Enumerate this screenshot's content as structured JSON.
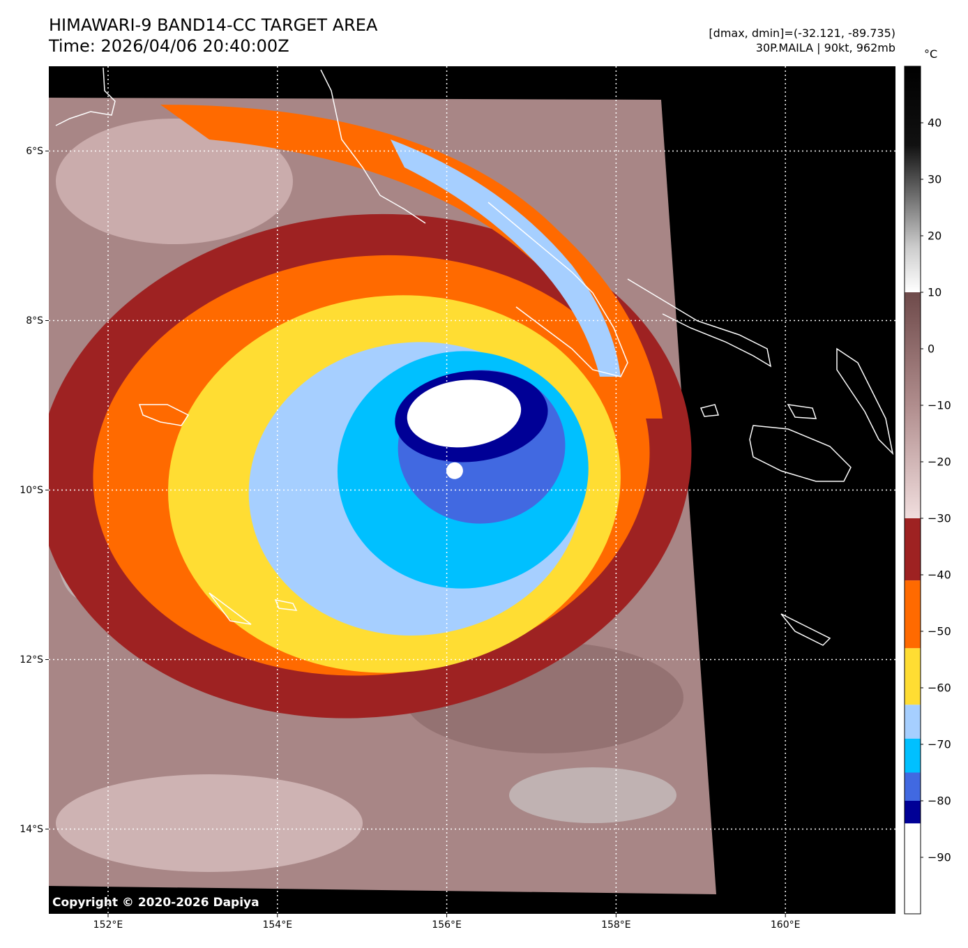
{
  "title": {
    "line1": "HIMAWARI-9 BAND14-CC TARGET AREA",
    "line2": "Time: 2026/04/06 20:40:00Z"
  },
  "info": {
    "line1": "[dmax, dmin]=(-32.121, -89.735)",
    "line2": "30P.MAILA | 90kt, 962mb"
  },
  "colorbar": {
    "unit": "°C",
    "ticks": [
      "40",
      "30",
      "20",
      "10",
      "0",
      "−10",
      "−20",
      "−30",
      "−40",
      "−50",
      "−60",
      "−70",
      "−80",
      "−90"
    ],
    "tick_values": [
      40,
      30,
      20,
      10,
      0,
      -10,
      -20,
      -30,
      -40,
      -50,
      -60,
      -70,
      -80,
      -90
    ],
    "range": [
      -100,
      50
    ],
    "bands": [
      {
        "from": 50,
        "to": 10,
        "color": "grayscale"
      },
      {
        "from": 10,
        "to": -30,
        "color": "#7a5656"
      },
      {
        "from": -30,
        "to": -41,
        "color": "#9e2222"
      },
      {
        "from": -41,
        "to": -53,
        "color": "#ff6a00"
      },
      {
        "from": -53,
        "to": -63,
        "color": "#ffdd33"
      },
      {
        "from": -63,
        "to": -69,
        "color": "#a6cfff"
      },
      {
        "from": -69,
        "to": -75,
        "color": "#00c0ff"
      },
      {
        "from": -75,
        "to": -80,
        "color": "#4169e1"
      },
      {
        "from": -80,
        "to": -84,
        "color": "#000096"
      },
      {
        "from": -84,
        "to": -100,
        "color": "#ffffff"
      }
    ]
  },
  "map": {
    "lat_labels": [
      "6°S",
      "8°S",
      "10°S",
      "12°S",
      "14°S"
    ],
    "lon_labels": [
      "152°E",
      "154°E",
      "156°E",
      "158°E",
      "160°E"
    ],
    "lat_values": [
      -6,
      -8,
      -10,
      -12,
      -14
    ],
    "lon_values": [
      152,
      154,
      156,
      158,
      160
    ],
    "extent": {
      "lon_min": 151.3,
      "lon_max": 161.3,
      "lat_max": -5.0,
      "lat_min": -15.0
    },
    "storm_center": {
      "lon": 156.1,
      "lat": -9.8
    }
  },
  "copyright": "Copyright © 2020-2026 Dapiya"
}
